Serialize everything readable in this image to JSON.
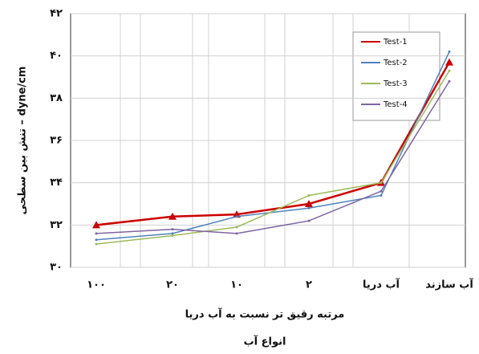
{
  "chart_data": {
    "type": "line",
    "y_label": "تنش بین سطحی – dyne/cm",
    "x_label": "مرتبه رقیق تر نسبت به آب دریا",
    "x_label_2": "انواع آب",
    "categories": [
      "۱۰۰",
      "۲۰",
      "۱۰",
      "۲",
      "آب دریا",
      "آب سازند"
    ],
    "series": [
      {
        "name": "Test-1",
        "color": "#cc0000",
        "values": [
          32.0,
          32.4,
          32.5,
          33.0,
          34.0,
          39.7
        ]
      },
      {
        "name": "Test-2",
        "color": "#4f81bd",
        "values": [
          31.3,
          31.6,
          32.4,
          32.8,
          33.4,
          40.2
        ]
      },
      {
        "name": "Test-3",
        "color": "#9bbb59",
        "values": [
          31.1,
          31.5,
          31.9,
          33.4,
          34.0,
          39.3
        ]
      },
      {
        "name": "Test-4",
        "color": "#8064a2",
        "values": [
          31.6,
          31.8,
          31.6,
          32.2,
          33.6,
          38.8
        ]
      }
    ],
    "ylim": [
      30,
      42
    ],
    "yticks": [
      {
        "value": 30,
        "label": "۳۰"
      },
      {
        "value": 32,
        "label": "۳۲"
      },
      {
        "value": 34,
        "label": "۳۴"
      },
      {
        "value": 36,
        "label": "۳۶"
      },
      {
        "value": 38,
        "label": "۳۸"
      },
      {
        "value": 40,
        "label": "۴۰"
      },
      {
        "value": 42,
        "label": "۴۲"
      }
    ],
    "grid": true,
    "legend": "top-right"
  }
}
